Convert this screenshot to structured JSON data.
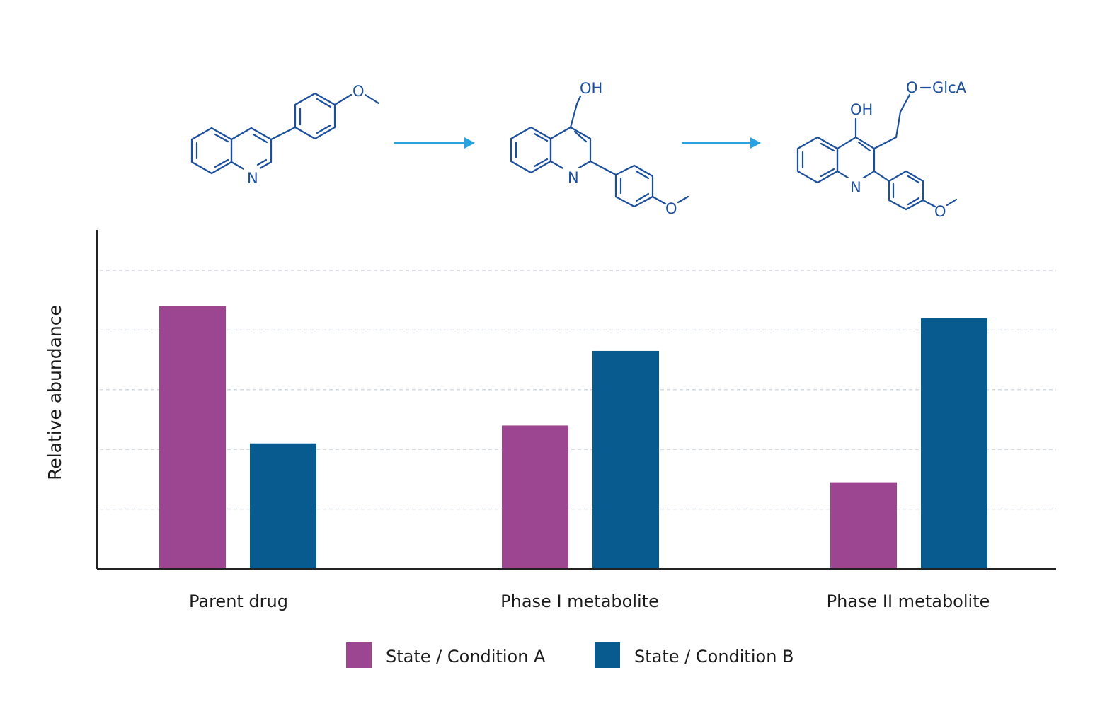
{
  "chart_data": {
    "type": "bar",
    "title": "",
    "xlabel": "",
    "ylabel": "Relative abundance",
    "categories": [
      "Parent drug",
      "Phase I metabolite",
      "Phase II metabolite"
    ],
    "series": [
      {
        "name": "State / Condition A",
        "color": "#9c4590",
        "values": [
          4.4,
          2.4,
          1.45
        ]
      },
      {
        "name": "State / Condition B",
        "color": "#075b8f",
        "values": [
          2.1,
          3.65,
          4.2
        ]
      }
    ],
    "ylim": [
      0,
      5
    ],
    "yticks": [
      1,
      2,
      3,
      4,
      5
    ],
    "grid": true,
    "legend_position": "bottom-center"
  },
  "structures": {
    "parent": {
      "atoms": [
        "N",
        "O"
      ]
    },
    "phase1": {
      "atoms": [
        "OH",
        "N",
        "O"
      ]
    },
    "phase2": {
      "atoms": [
        "O",
        "GlcA",
        "OH",
        "N",
        "O"
      ]
    },
    "colors": {
      "structure": "#1b4f9c",
      "arrow": "#29a3e0"
    }
  }
}
